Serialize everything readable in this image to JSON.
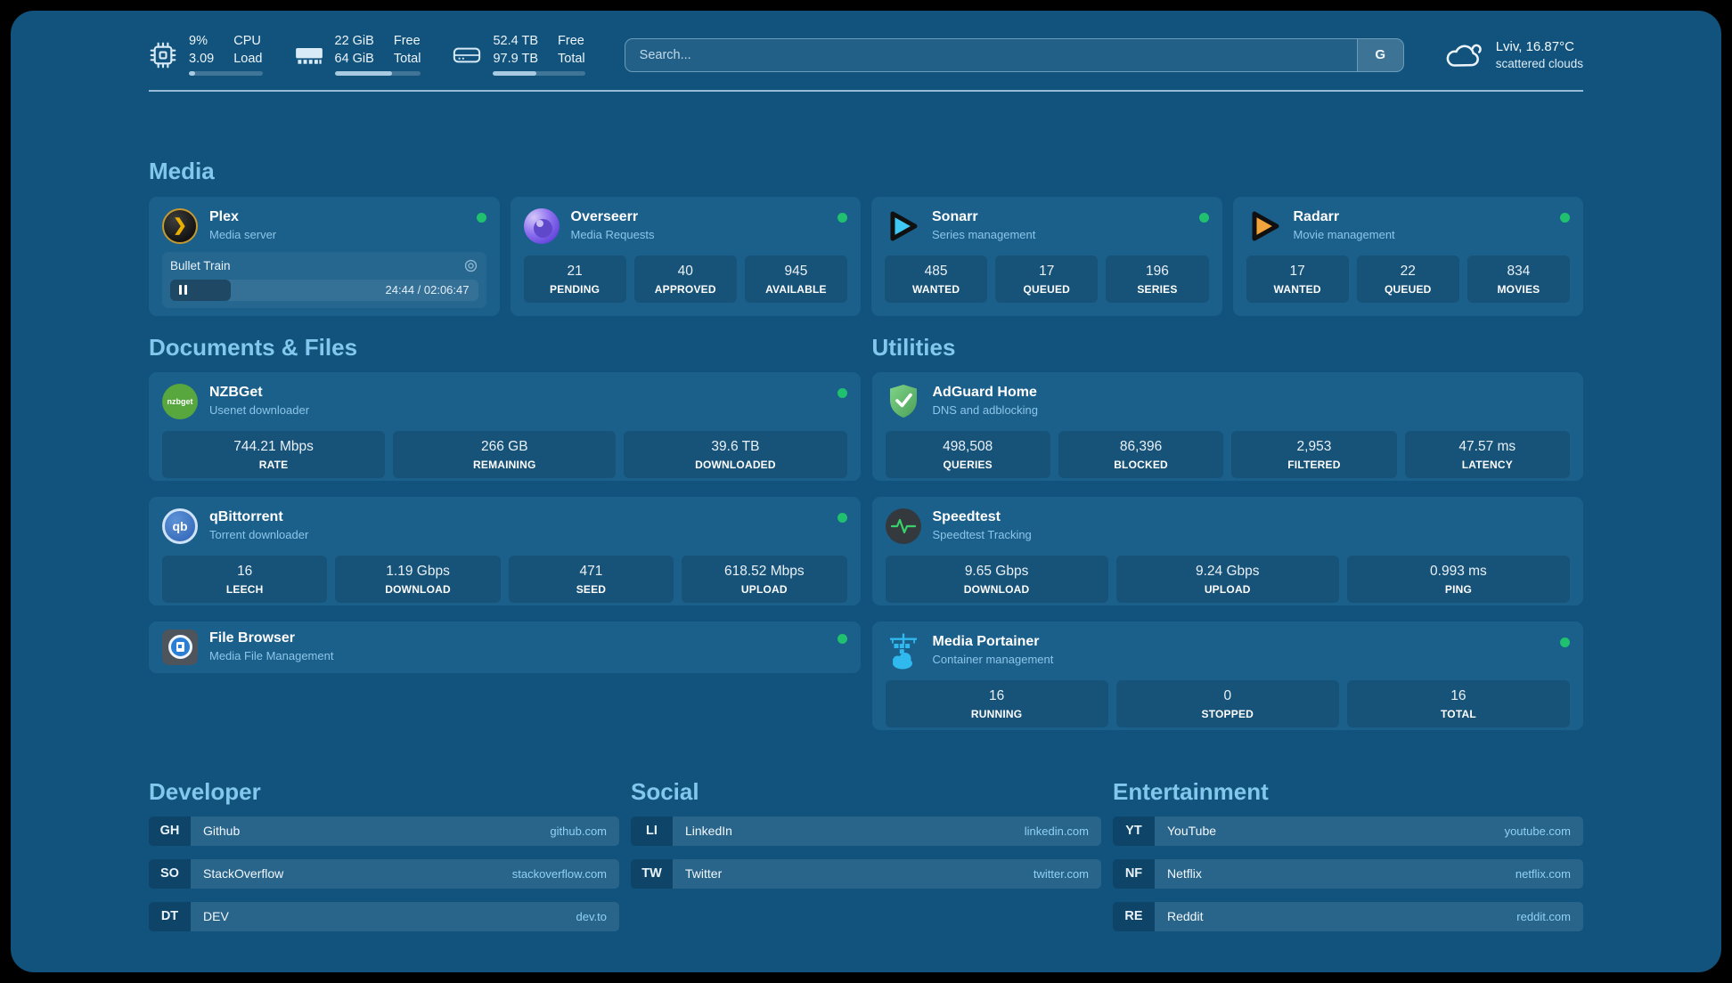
{
  "header": {
    "stats": [
      {
        "icon": "cpu-icon",
        "value_top": "9%",
        "value_bottom": "3.09",
        "label_top": "CPU",
        "label_bottom": "Load",
        "progress": 9
      },
      {
        "icon": "memory-icon",
        "value_top": "22 GiB",
        "value_bottom": "64 GiB",
        "label_top": "Free",
        "label_bottom": "Total",
        "progress": 66
      },
      {
        "icon": "disk-icon",
        "value_top": "52.4 TB",
        "value_bottom": "97.9 TB",
        "label_top": "Free",
        "label_bottom": "Total",
        "progress": 47
      }
    ],
    "search": {
      "placeholder": "Search...",
      "button_label": "G"
    },
    "weather": {
      "location": "Lviv, 16.87°C",
      "condition": "scattered clouds"
    }
  },
  "media": {
    "title": "Media",
    "plex": {
      "name": "Plex",
      "subtitle": "Media server",
      "online": true,
      "player": {
        "track": "Bullet Train",
        "time": "24:44 / 02:06:47",
        "progress": 19.6,
        "state": "paused"
      }
    },
    "overseerr": {
      "name": "Overseerr",
      "subtitle": "Media Requests",
      "online": true,
      "stats": [
        {
          "value": "21",
          "label": "PENDING"
        },
        {
          "value": "40",
          "label": "APPROVED"
        },
        {
          "value": "945",
          "label": "AVAILABLE"
        }
      ]
    },
    "sonarr": {
      "name": "Sonarr",
      "subtitle": "Series management",
      "online": true,
      "stats": [
        {
          "value": "485",
          "label": "WANTED"
        },
        {
          "value": "17",
          "label": "QUEUED"
        },
        {
          "value": "196",
          "label": "SERIES"
        }
      ]
    },
    "radarr": {
      "name": "Radarr",
      "subtitle": "Movie management",
      "online": true,
      "stats": [
        {
          "value": "17",
          "label": "WANTED"
        },
        {
          "value": "22",
          "label": "QUEUED"
        },
        {
          "value": "834",
          "label": "MOVIES"
        }
      ]
    }
  },
  "documents": {
    "title": "Documents & Files",
    "nzbget": {
      "name": "NZBGet",
      "subtitle": "Usenet downloader",
      "online": true,
      "icon_text": "nzbget",
      "stats": [
        {
          "value": "744.21 Mbps",
          "label": "RATE"
        },
        {
          "value": "266 GB",
          "label": "REMAINING"
        },
        {
          "value": "39.6 TB",
          "label": "DOWNLOADED"
        }
      ]
    },
    "qbittorrent": {
      "name": "qBittorrent",
      "subtitle": "Torrent downloader",
      "online": true,
      "icon_text": "qb",
      "stats": [
        {
          "value": "16",
          "label": "LEECH"
        },
        {
          "value": "1.19 Gbps",
          "label": "DOWNLOAD"
        },
        {
          "value": "471",
          "label": "SEED"
        },
        {
          "value": "618.52 Mbps",
          "label": "UPLOAD"
        }
      ]
    },
    "filebrowser": {
      "name": "File Browser",
      "subtitle": "Media File Management",
      "online": true
    }
  },
  "utilities": {
    "title": "Utilities",
    "adguard": {
      "name": "AdGuard Home",
      "subtitle": "DNS and adblocking",
      "online": false,
      "stats": [
        {
          "value": "498,508",
          "label": "QUERIES"
        },
        {
          "value": "86,396",
          "label": "BLOCKED"
        },
        {
          "value": "2,953",
          "label": "FILTERED"
        },
        {
          "value": "47.57 ms",
          "label": "LATENCY"
        }
      ]
    },
    "speedtest": {
      "name": "Speedtest",
      "subtitle": "Speedtest Tracking",
      "online": false,
      "stats": [
        {
          "value": "9.65 Gbps",
          "label": "DOWNLOAD"
        },
        {
          "value": "9.24 Gbps",
          "label": "UPLOAD"
        },
        {
          "value": "0.993 ms",
          "label": "PING"
        }
      ]
    },
    "portainer": {
      "name": "Media Portainer",
      "subtitle": "Container management",
      "online": true,
      "stats": [
        {
          "value": "16",
          "label": "RUNNING"
        },
        {
          "value": "0",
          "label": "STOPPED"
        },
        {
          "value": "16",
          "label": "TOTAL"
        }
      ]
    }
  },
  "developer": {
    "title": "Developer",
    "links": [
      {
        "abbr": "GH",
        "name": "Github",
        "domain": "github.com"
      },
      {
        "abbr": "SO",
        "name": "StackOverflow",
        "domain": "stackoverflow.com"
      },
      {
        "abbr": "DT",
        "name": "DEV",
        "domain": "dev.to"
      }
    ]
  },
  "social": {
    "title": "Social",
    "links": [
      {
        "abbr": "LI",
        "name": "LinkedIn",
        "domain": "linkedin.com"
      },
      {
        "abbr": "TW",
        "name": "Twitter",
        "domain": "twitter.com"
      }
    ]
  },
  "entertainment": {
    "title": "Entertainment",
    "links": [
      {
        "abbr": "YT",
        "name": "YouTube",
        "domain": "youtube.com"
      },
      {
        "abbr": "NF",
        "name": "Netflix",
        "domain": "netflix.com"
      },
      {
        "abbr": "RE",
        "name": "Reddit",
        "domain": "reddit.com"
      }
    ]
  },
  "colors": {
    "background": "#11537D",
    "card": "#1B5F8B",
    "heading": "#82C7EC",
    "subtitle": "#8CC6E9",
    "status_online": "#1FC16F",
    "domain_text": "#8FD2F4"
  }
}
